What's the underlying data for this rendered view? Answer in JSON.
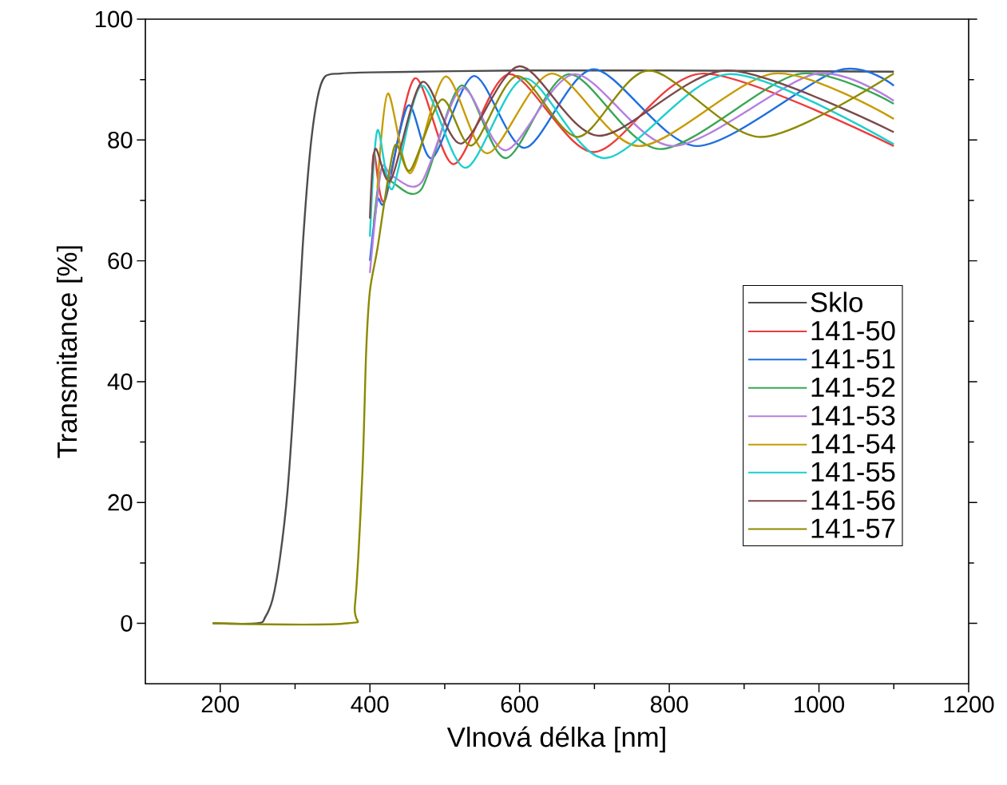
{
  "chart_data": {
    "type": "line",
    "xlabel": "Vlnová délka [nm]",
    "ylabel": "Transmitance [%]",
    "xlim": [
      100,
      1200
    ],
    "ylim": [
      -10,
      100
    ],
    "xticks": [
      200,
      400,
      600,
      800,
      1000,
      1200
    ],
    "yticks": [
      0,
      20,
      40,
      60,
      80,
      100
    ],
    "legend": "right",
    "grid": false,
    "marker": "none",
    "line_style": "solid",
    "series": [
      {
        "name": "Sklo",
        "color": "#4d4d4d",
        "x": [
          190,
          250,
          260,
          270,
          280,
          290,
          300,
          310,
          320,
          330,
          340,
          360,
          400,
          600,
          800,
          1100
        ],
        "values": [
          0,
          0,
          1,
          4,
          11,
          22,
          40,
          62,
          78,
          87,
          90.5,
          91,
          91.2,
          91.5,
          91.5,
          91.3
        ]
      },
      {
        "name": "141-50",
        "color": "#ee3b3b",
        "x": [
          403,
          406,
          420,
          460,
          512,
          586,
          699,
          845,
          1100
        ],
        "values": [
          74,
          77.8,
          70,
          90.2,
          76,
          90.9,
          78,
          91,
          79
        ]
      },
      {
        "name": "141-51",
        "color": "#1f6fde",
        "x": [
          400,
          410,
          420,
          451,
          483,
          539,
          607,
          699,
          837,
          1025,
          1100
        ],
        "values": [
          60,
          70,
          70,
          85.7,
          77,
          90.6,
          78.7,
          91.7,
          79,
          91.5,
          89
        ]
      },
      {
        "name": "141-52",
        "color": "#3aa655",
        "x": [
          405,
          415,
          430,
          469,
          522,
          582,
          666,
          788,
          972,
          1100
        ],
        "values": [
          66,
          75,
          73,
          71.9,
          89,
          77,
          90.9,
          78.5,
          90.9,
          86
        ]
      },
      {
        "name": "141-53",
        "color": "#b57fe0",
        "x": [
          400,
          415,
          430,
          469,
          523,
          582,
          674,
          805,
          994,
          1100
        ],
        "values": [
          58,
          75,
          74,
          73,
          88.6,
          78.3,
          90.9,
          79,
          90.9,
          86.5
        ]
      },
      {
        "name": "141-54",
        "color": "#c89b00",
        "x": [
          410,
          424,
          454,
          501,
          557,
          643,
          760,
          940,
          1100
        ],
        "values": [
          72,
          87.7,
          74.5,
          90.5,
          77.8,
          91,
          79,
          91,
          83.5
        ]
      },
      {
        "name": "141-55",
        "color": "#1ccfcf",
        "x": [
          400,
          410,
          430,
          469,
          528,
          607,
          714,
          880,
          1100
        ],
        "values": [
          64,
          81.6,
          71.9,
          89,
          75.4,
          90.2,
          77,
          90.9,
          79.3
        ]
      },
      {
        "name": "141-56",
        "color": "#7a4a4a",
        "x": [
          400,
          407,
          428,
          470,
          522,
          600,
          706,
          877,
          1100
        ],
        "values": [
          67,
          78.5,
          73.4,
          89.6,
          79.4,
          92.2,
          80.7,
          91.5,
          81.3
        ]
      },
      {
        "name": "141-57",
        "color": "#8c8a00",
        "x": [
          190,
          370,
          380,
          390,
          395,
          400,
          410,
          433,
          454,
          496,
          536,
          597,
          678,
          773,
          922,
          1100
        ],
        "values": [
          0,
          0,
          3,
          25,
          45,
          55,
          62,
          79,
          75,
          86.7,
          79.1,
          90.6,
          80.5,
          91.5,
          80.5,
          91
        ]
      }
    ]
  }
}
